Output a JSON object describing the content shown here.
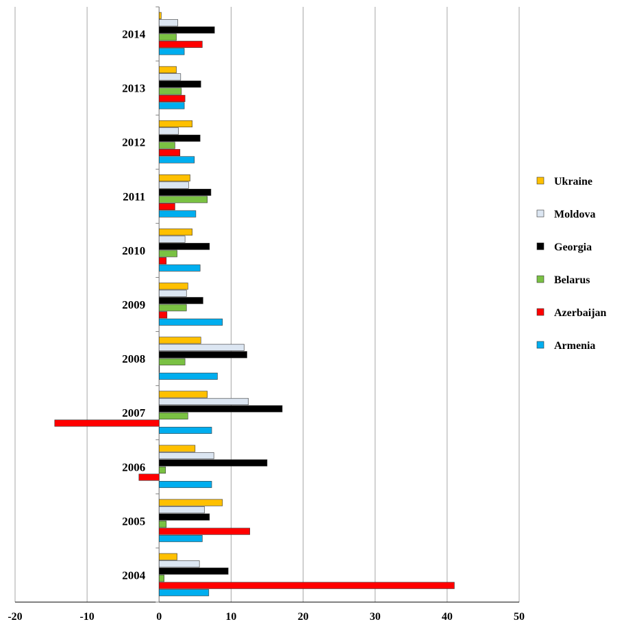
{
  "chart_data": {
    "type": "bar",
    "orientation": "horizontal",
    "categories": [
      "2004",
      "2005",
      "2006",
      "2007",
      "2008",
      "2009",
      "2010",
      "2011",
      "2012",
      "2013",
      "2014"
    ],
    "series": [
      {
        "name": "Armenia",
        "color": "#00AEEF",
        "values": [
          6.9,
          6.0,
          7.3,
          7.3,
          8.1,
          8.8,
          5.7,
          5.1,
          4.9,
          3.5,
          3.5
        ]
      },
      {
        "name": "Azerbaijan",
        "color": "#FF0000",
        "values": [
          41.0,
          12.6,
          -2.8,
          -14.5,
          0.0,
          1.1,
          1.0,
          2.2,
          2.9,
          3.6,
          6.0
        ]
      },
      {
        "name": "Belarus",
        "color": "#7AC143",
        "values": [
          0.7,
          1.0,
          0.9,
          4.0,
          3.6,
          3.8,
          2.5,
          6.7,
          2.2,
          3.1,
          2.4
        ]
      },
      {
        "name": "Georgia",
        "color": "#000000",
        "values": [
          9.6,
          7.0,
          15.0,
          17.1,
          12.2,
          6.1,
          7.0,
          7.2,
          5.7,
          5.8,
          7.7
        ]
      },
      {
        "name": "Moldova",
        "color": "#DCE6F2",
        "values": [
          5.6,
          6.3,
          7.6,
          12.4,
          11.8,
          3.8,
          3.6,
          4.1,
          2.7,
          3.0,
          2.6
        ]
      },
      {
        "name": "Ukraine",
        "color": "#FFC000",
        "values": [
          2.5,
          8.8,
          5.0,
          6.7,
          5.8,
          4.0,
          4.6,
          4.3,
          4.6,
          2.4,
          0.3
        ]
      }
    ],
    "xlim": [
      -20,
      50
    ],
    "xticks": [
      "-20",
      "-10",
      "0",
      "10",
      "20",
      "30",
      "40",
      "50"
    ],
    "xtick_values": [
      -20,
      -10,
      0,
      10,
      20,
      30,
      40,
      50
    ],
    "grid": true,
    "legend_position": "right",
    "legend_order": [
      "Ukraine",
      "Moldova",
      "Georgia",
      "Belarus",
      "Azerbaijan",
      "Armenia"
    ],
    "title": "",
    "xlabel": "",
    "ylabel": ""
  }
}
